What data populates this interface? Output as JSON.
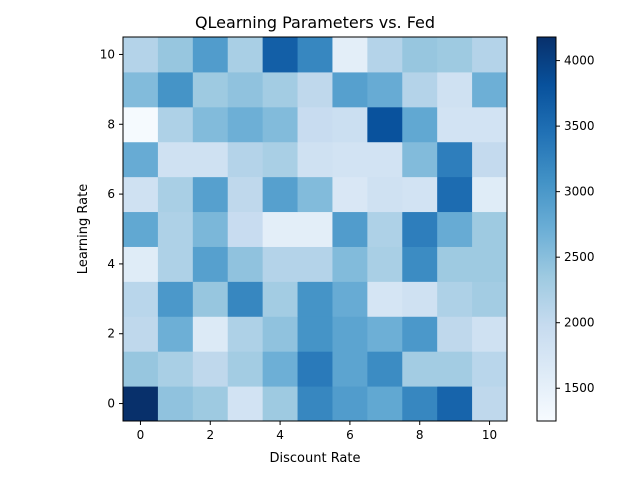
{
  "chart_data": {
    "type": "heatmap",
    "title": "QLearning Parameters vs. Fed",
    "xlabel": "Discount Rate",
    "ylabel": "Learning Rate",
    "x_ticks": [
      0,
      2,
      4,
      6,
      8,
      10
    ],
    "y_ticks": [
      0,
      2,
      4,
      6,
      8,
      10
    ],
    "colorbar_ticks": [
      1500,
      2000,
      2500,
      3000,
      3500,
      4000
    ],
    "colorbar_range": [
      1250,
      4180
    ],
    "colormap": [
      "#f7fbff",
      "#deebf7",
      "#c6dbef",
      "#9ecae1",
      "#6baed6",
      "#4292c6",
      "#2171b5",
      "#08519c",
      "#08306b"
    ],
    "x": [
      0,
      1,
      2,
      3,
      4,
      5,
      6,
      7,
      8,
      9,
      10
    ],
    "y": [
      0,
      1,
      2,
      3,
      4,
      5,
      6,
      7,
      8,
      9,
      10
    ],
    "z": [
      [
        4180,
        2450,
        2350,
        1800,
        2350,
        3200,
        2950,
        2800,
        3200,
        3600,
        2050
      ],
      [
        2400,
        2250,
        2050,
        2300,
        2700,
        3350,
        2850,
        3150,
        2300,
        2300,
        2100
      ],
      [
        2050,
        2700,
        1650,
        2200,
        2450,
        3050,
        2850,
        2700,
        3000,
        2050,
        1850
      ],
      [
        2100,
        3000,
        2400,
        3200,
        2300,
        3050,
        2750,
        1750,
        1850,
        2200,
        2300
      ],
      [
        1600,
        2200,
        2900,
        2450,
        2150,
        2150,
        2550,
        2250,
        3150,
        2350,
        2350
      ],
      [
        2800,
        2200,
        2600,
        1950,
        1550,
        1550,
        2950,
        2200,
        3300,
        2750,
        2350
      ],
      [
        1850,
        2250,
        2900,
        2050,
        2900,
        2550,
        1700,
        1850,
        1800,
        3500,
        1600
      ],
      [
        2750,
        1850,
        1850,
        2150,
        2250,
        1850,
        1800,
        1800,
        2550,
        3300,
        2000
      ],
      [
        1280,
        2200,
        2550,
        2700,
        2550,
        1950,
        1900,
        3800,
        2800,
        1800,
        1800
      ],
      [
        2550,
        3050,
        2350,
        2450,
        2300,
        2050,
        2900,
        2750,
        2150,
        1850,
        2700
      ],
      [
        2150,
        2400,
        2950,
        2250,
        3650,
        3200,
        1550,
        2150,
        2400,
        2350,
        2150
      ]
    ]
  }
}
